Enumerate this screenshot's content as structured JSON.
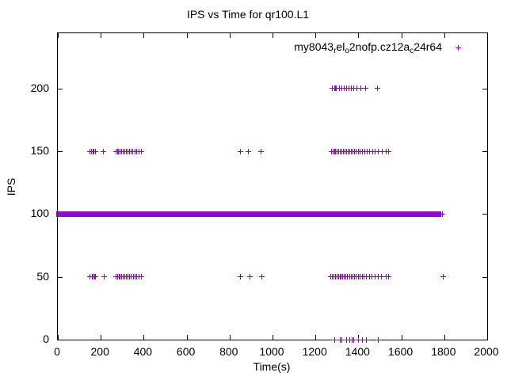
{
  "chart_data": {
    "type": "scatter",
    "title": "IPS vs Time for qr100.L1",
    "xlabel": "Time(s)",
    "ylabel": "IPS",
    "xlim": [
      0,
      2000
    ],
    "ylim": [
      0,
      244
    ],
    "x_ticks": [
      0,
      200,
      400,
      600,
      800,
      1000,
      1200,
      1400,
      1600,
      1800,
      2000
    ],
    "y_ticks": [
      0,
      50,
      100,
      150,
      200
    ],
    "grid": false,
    "legend_position": "top-right-inside",
    "marker": "plus",
    "marker_color": "#9400d3",
    "series_name": "my8043_rel_o2nofp.cz12a_c24r64",
    "legend_parts": [
      {
        "t": "my8043",
        "sub": false
      },
      {
        "t": "r",
        "sub": true
      },
      {
        "t": "el",
        "sub": false
      },
      {
        "t": "o",
        "sub": true
      },
      {
        "t": "2nofp.cz12a",
        "sub": false
      },
      {
        "t": "c",
        "sub": true
      },
      {
        "t": "24r64",
        "sub": false
      }
    ],
    "groups": [
      {
        "ips": 200,
        "times": [
          1277,
          1288,
          1293,
          1298,
          1310,
          1322,
          1334,
          1345,
          1356,
          1367,
          1379,
          1394,
          1410,
          1432,
          1490
        ]
      },
      {
        "ips": 150,
        "times": [
          149,
          158,
          163,
          169,
          176,
          214,
          272,
          278,
          284,
          290,
          297,
          304,
          311,
          318,
          326,
          334,
          342,
          350,
          359,
          368,
          378,
          388,
          852,
          889,
          948,
          1274,
          1281,
          1288,
          1295,
          1301,
          1308,
          1315,
          1322,
          1329,
          1336,
          1344,
          1351,
          1359,
          1367,
          1375,
          1383,
          1391,
          1400,
          1409,
          1419,
          1429,
          1440,
          1452,
          1465,
          1478,
          1492,
          1510,
          1530,
          1542
        ]
      },
      {
        "ips": 100,
        "times": [
          1790
        ]
      },
      {
        "ips": 50,
        "times": [
          151,
          159,
          164,
          170,
          177,
          215,
          273,
          279,
          285,
          291,
          298,
          305,
          312,
          319,
          327,
          335,
          343,
          351,
          360,
          369,
          379,
          389,
          852,
          893,
          952,
          1273,
          1280,
          1287,
          1294,
          1300,
          1307,
          1314,
          1321,
          1328,
          1335,
          1343,
          1350,
          1358,
          1366,
          1374,
          1382,
          1390,
          1399,
          1408,
          1418,
          1428,
          1439,
          1451,
          1464,
          1477,
          1491,
          1509,
          1529,
          1541,
          1795
        ]
      },
      {
        "ips": 0,
        "times": [
          1288,
          1315,
          1324,
          1346,
          1361,
          1370,
          1380,
          1399,
          1420,
          1438,
          1491
        ]
      }
    ],
    "dense_band": {
      "ips": 100,
      "segments": [
        [
          0,
          333
        ],
        [
          338,
          1196
        ],
        [
          1202,
          1779
        ]
      ]
    }
  }
}
